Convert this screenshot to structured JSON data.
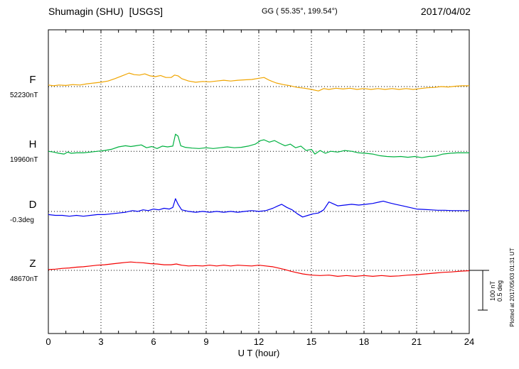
{
  "header": {
    "station": "Shumagin (SHU)  [USGS]",
    "coordinates": "GG ( 55.35°, 199.54°)",
    "date": "2017/04/02"
  },
  "axis": {
    "xlabel": "U T (hour)",
    "ticks": [
      0,
      3,
      6,
      9,
      12,
      15,
      18,
      21,
      24
    ],
    "xmin": 0,
    "xmax": 24
  },
  "scale_bar": {
    "nt_label": "100 nT",
    "deg_label": "0.5 deg",
    "nt_per_division": 100,
    "deg_per_division": 0.5
  },
  "plotted_at": "Plotted at 2017/05/03 01:31 UT",
  "chart_data": {
    "type": "line",
    "title": "Shumagin (SHU) [USGS] magnetogram 2017/04/02",
    "xlabel": "U T (hour)",
    "xlim": [
      0,
      24
    ],
    "x_ticks": [
      0,
      3,
      6,
      9,
      12,
      15,
      18,
      21,
      24
    ],
    "grid": "dotted vertical lines every 3 h; dotted horizontal baseline per channel",
    "scale": {
      "nT_per_division": 100,
      "deg_per_division": 0.5
    },
    "series": [
      {
        "name": "F",
        "unit": "nT",
        "baseline_label": "52230nT",
        "baseline_value": 52230,
        "color": "#f0a500",
        "baseline_frac": 0.187,
        "points": [
          [
            0,
            4
          ],
          [
            0.3,
            2
          ],
          [
            0.6,
            4
          ],
          [
            1,
            3
          ],
          [
            1.4,
            5
          ],
          [
            1.8,
            4
          ],
          [
            2.2,
            7
          ],
          [
            2.6,
            9
          ],
          [
            3,
            11
          ],
          [
            3.4,
            14
          ],
          [
            3.8,
            20
          ],
          [
            4.2,
            27
          ],
          [
            4.6,
            34
          ],
          [
            4.9,
            30
          ],
          [
            5.2,
            29
          ],
          [
            5.5,
            32
          ],
          [
            5.8,
            27
          ],
          [
            6.1,
            25
          ],
          [
            6.4,
            28
          ],
          [
            6.7,
            23
          ],
          [
            7,
            23
          ],
          [
            7.2,
            29
          ],
          [
            7.4,
            27
          ],
          [
            7.6,
            20
          ],
          [
            8,
            14
          ],
          [
            8.4,
            11
          ],
          [
            8.8,
            13
          ],
          [
            9.2,
            12
          ],
          [
            9.6,
            14
          ],
          [
            10,
            16
          ],
          [
            10.4,
            14
          ],
          [
            10.8,
            16
          ],
          [
            11.2,
            17
          ],
          [
            11.6,
            18
          ],
          [
            12,
            21
          ],
          [
            12.3,
            23
          ],
          [
            12.6,
            16
          ],
          [
            13,
            9
          ],
          [
            13.4,
            5
          ],
          [
            13.8,
            2
          ],
          [
            14.2,
            -2
          ],
          [
            14.6,
            -4
          ],
          [
            15,
            -7
          ],
          [
            15.4,
            -11
          ],
          [
            15.7,
            -5
          ],
          [
            16,
            -7
          ],
          [
            16.4,
            -4
          ],
          [
            16.8,
            -6
          ],
          [
            17.2,
            -4
          ],
          [
            17.6,
            -7
          ],
          [
            18,
            -5
          ],
          [
            18.4,
            -7
          ],
          [
            18.8,
            -5
          ],
          [
            19.2,
            -7
          ],
          [
            19.6,
            -5
          ],
          [
            20,
            -7
          ],
          [
            20.4,
            -5
          ],
          [
            20.8,
            -7
          ],
          [
            21.2,
            -5
          ],
          [
            21.6,
            -3
          ],
          [
            22,
            -2
          ],
          [
            22.4,
            0
          ],
          [
            22.8,
            -1
          ],
          [
            23.2,
            1
          ],
          [
            23.6,
            2
          ],
          [
            24,
            2
          ]
        ]
      },
      {
        "name": "H",
        "unit": "nT",
        "baseline_label": "19960nT",
        "baseline_value": 19960,
        "color": "#00b140",
        "baseline_frac": 0.4,
        "points": [
          [
            0,
            0
          ],
          [
            0.3,
            -2
          ],
          [
            0.6,
            -5
          ],
          [
            0.9,
            -7
          ],
          [
            1.1,
            -2
          ],
          [
            1.3,
            -5
          ],
          [
            1.6,
            -4
          ],
          [
            2,
            -4
          ],
          [
            2.4,
            -2
          ],
          [
            2.8,
            0
          ],
          [
            3.2,
            2
          ],
          [
            3.6,
            5
          ],
          [
            4,
            11
          ],
          [
            4.4,
            14
          ],
          [
            4.7,
            12
          ],
          [
            5,
            14
          ],
          [
            5.3,
            16
          ],
          [
            5.6,
            9
          ],
          [
            5.9,
            12
          ],
          [
            6.2,
            7
          ],
          [
            6.5,
            13
          ],
          [
            6.8,
            11
          ],
          [
            7.1,
            13
          ],
          [
            7.25,
            43
          ],
          [
            7.4,
            38
          ],
          [
            7.55,
            14
          ],
          [
            7.8,
            10
          ],
          [
            8.2,
            8
          ],
          [
            8.6,
            7
          ],
          [
            9,
            9
          ],
          [
            9.4,
            7
          ],
          [
            9.8,
            9
          ],
          [
            10.2,
            11
          ],
          [
            10.6,
            9
          ],
          [
            11,
            10
          ],
          [
            11.4,
            13
          ],
          [
            11.8,
            18
          ],
          [
            12.1,
            27
          ],
          [
            12.3,
            29
          ],
          [
            12.6,
            23
          ],
          [
            12.9,
            27
          ],
          [
            13.2,
            20
          ],
          [
            13.5,
            14
          ],
          [
            13.8,
            18
          ],
          [
            14.1,
            9
          ],
          [
            14.4,
            13
          ],
          [
            14.7,
            2
          ],
          [
            15,
            5
          ],
          [
            15.2,
            -7
          ],
          [
            15.5,
            2
          ],
          [
            15.8,
            -5
          ],
          [
            16.1,
            0
          ],
          [
            16.5,
            -2
          ],
          [
            16.9,
            2
          ],
          [
            17.3,
            0
          ],
          [
            17.7,
            -4
          ],
          [
            18.1,
            -5
          ],
          [
            18.5,
            -7
          ],
          [
            18.9,
            -11
          ],
          [
            19.3,
            -13
          ],
          [
            19.7,
            -14
          ],
          [
            20.1,
            -13
          ],
          [
            20.5,
            -15
          ],
          [
            20.9,
            -13
          ],
          [
            21.3,
            -16
          ],
          [
            21.7,
            -13
          ],
          [
            22.1,
            -12
          ],
          [
            22.5,
            -7
          ],
          [
            22.9,
            -5
          ],
          [
            23.3,
            -4
          ],
          [
            23.7,
            -4
          ],
          [
            24,
            -4
          ]
        ]
      },
      {
        "name": "D",
        "unit": "deg",
        "baseline_label": "-0.3deg",
        "baseline_value": -0.3,
        "color": "#0000f0",
        "baseline_frac": 0.598,
        "points": [
          [
            0,
            -0.04
          ],
          [
            0.4,
            -0.05
          ],
          [
            0.8,
            -0.05
          ],
          [
            1.2,
            -0.06
          ],
          [
            1.6,
            -0.05
          ],
          [
            2,
            -0.06
          ],
          [
            2.4,
            -0.05
          ],
          [
            2.8,
            -0.04
          ],
          [
            3.2,
            -0.04
          ],
          [
            3.6,
            -0.03
          ],
          [
            4,
            -0.02
          ],
          [
            4.4,
            -0.01
          ],
          [
            4.8,
            0.01
          ],
          [
            5.1,
            0
          ],
          [
            5.4,
            0.02
          ],
          [
            5.7,
            0.01
          ],
          [
            6,
            0.03
          ],
          [
            6.3,
            0.02
          ],
          [
            6.6,
            0.04
          ],
          [
            6.9,
            0.03
          ],
          [
            7.1,
            0.05
          ],
          [
            7.25,
            0.16
          ],
          [
            7.4,
            0.09
          ],
          [
            7.6,
            0.02
          ],
          [
            8,
            0
          ],
          [
            8.4,
            -0.01
          ],
          [
            8.8,
            0
          ],
          [
            9.2,
            -0.01
          ],
          [
            9.6,
            0
          ],
          [
            10,
            -0.01
          ],
          [
            10.4,
            0
          ],
          [
            10.8,
            -0.01
          ],
          [
            11.2,
            0
          ],
          [
            11.6,
            0.01
          ],
          [
            12,
            0
          ],
          [
            12.4,
            0.01
          ],
          [
            12.8,
            0.04
          ],
          [
            13.1,
            0.07
          ],
          [
            13.3,
            0.09
          ],
          [
            13.6,
            0.05
          ],
          [
            13.9,
            0.02
          ],
          [
            14.2,
            -0.03
          ],
          [
            14.5,
            -0.07
          ],
          [
            14.8,
            -0.05
          ],
          [
            15.1,
            -0.03
          ],
          [
            15.4,
            -0.02
          ],
          [
            15.7,
            0.02
          ],
          [
            16,
            0.12
          ],
          [
            16.2,
            0.1
          ],
          [
            16.5,
            0.07
          ],
          [
            16.9,
            0.08
          ],
          [
            17.3,
            0.09
          ],
          [
            17.7,
            0.08
          ],
          [
            18.1,
            0.09
          ],
          [
            18.5,
            0.1
          ],
          [
            18.9,
            0.12
          ],
          [
            19.1,
            0.13
          ],
          [
            19.4,
            0.11
          ],
          [
            19.8,
            0.09
          ],
          [
            20.2,
            0.07
          ],
          [
            20.6,
            0.05
          ],
          [
            21,
            0.03
          ],
          [
            21.4,
            0.025
          ],
          [
            21.8,
            0.02
          ],
          [
            22.2,
            0.015
          ],
          [
            22.6,
            0.015
          ],
          [
            23,
            0.01
          ],
          [
            23.5,
            0.01
          ],
          [
            24,
            0.01
          ]
        ]
      },
      {
        "name": "Z",
        "unit": "nT",
        "baseline_label": "48670nT",
        "baseline_value": 48670,
        "color": "#f40000",
        "baseline_frac": 0.792,
        "points": [
          [
            0,
            2
          ],
          [
            0.4,
            3
          ],
          [
            0.8,
            5
          ],
          [
            1.2,
            6
          ],
          [
            1.6,
            8
          ],
          [
            2,
            9
          ],
          [
            2.4,
            11
          ],
          [
            2.8,
            13
          ],
          [
            3.2,
            14
          ],
          [
            3.6,
            16
          ],
          [
            4,
            18
          ],
          [
            4.4,
            20
          ],
          [
            4.7,
            21
          ],
          [
            5,
            20
          ],
          [
            5.4,
            19
          ],
          [
            5.8,
            17
          ],
          [
            6.2,
            16
          ],
          [
            6.6,
            14
          ],
          [
            7,
            14
          ],
          [
            7.3,
            16
          ],
          [
            7.6,
            13
          ],
          [
            8,
            11
          ],
          [
            8.4,
            12
          ],
          [
            8.8,
            11
          ],
          [
            9.2,
            13
          ],
          [
            9.6,
            11
          ],
          [
            10,
            13
          ],
          [
            10.4,
            11
          ],
          [
            10.8,
            13
          ],
          [
            11.2,
            12
          ],
          [
            11.6,
            11
          ],
          [
            12,
            13
          ],
          [
            12.4,
            11
          ],
          [
            12.8,
            9
          ],
          [
            13.2,
            5
          ],
          [
            13.5,
            2
          ],
          [
            13.8,
            -2
          ],
          [
            14.1,
            -5
          ],
          [
            14.5,
            -9
          ],
          [
            15,
            -12
          ],
          [
            15.5,
            -13
          ],
          [
            16,
            -12
          ],
          [
            16.5,
            -15
          ],
          [
            17,
            -13
          ],
          [
            17.5,
            -15
          ],
          [
            18,
            -13
          ],
          [
            18.5,
            -15
          ],
          [
            19,
            -13
          ],
          [
            19.5,
            -15
          ],
          [
            20,
            -14
          ],
          [
            20.5,
            -12
          ],
          [
            21,
            -11
          ],
          [
            21.5,
            -9
          ],
          [
            22,
            -7
          ],
          [
            22.5,
            -5
          ],
          [
            23,
            -4
          ],
          [
            23.5,
            -2
          ],
          [
            24,
            -1
          ]
        ]
      }
    ]
  }
}
